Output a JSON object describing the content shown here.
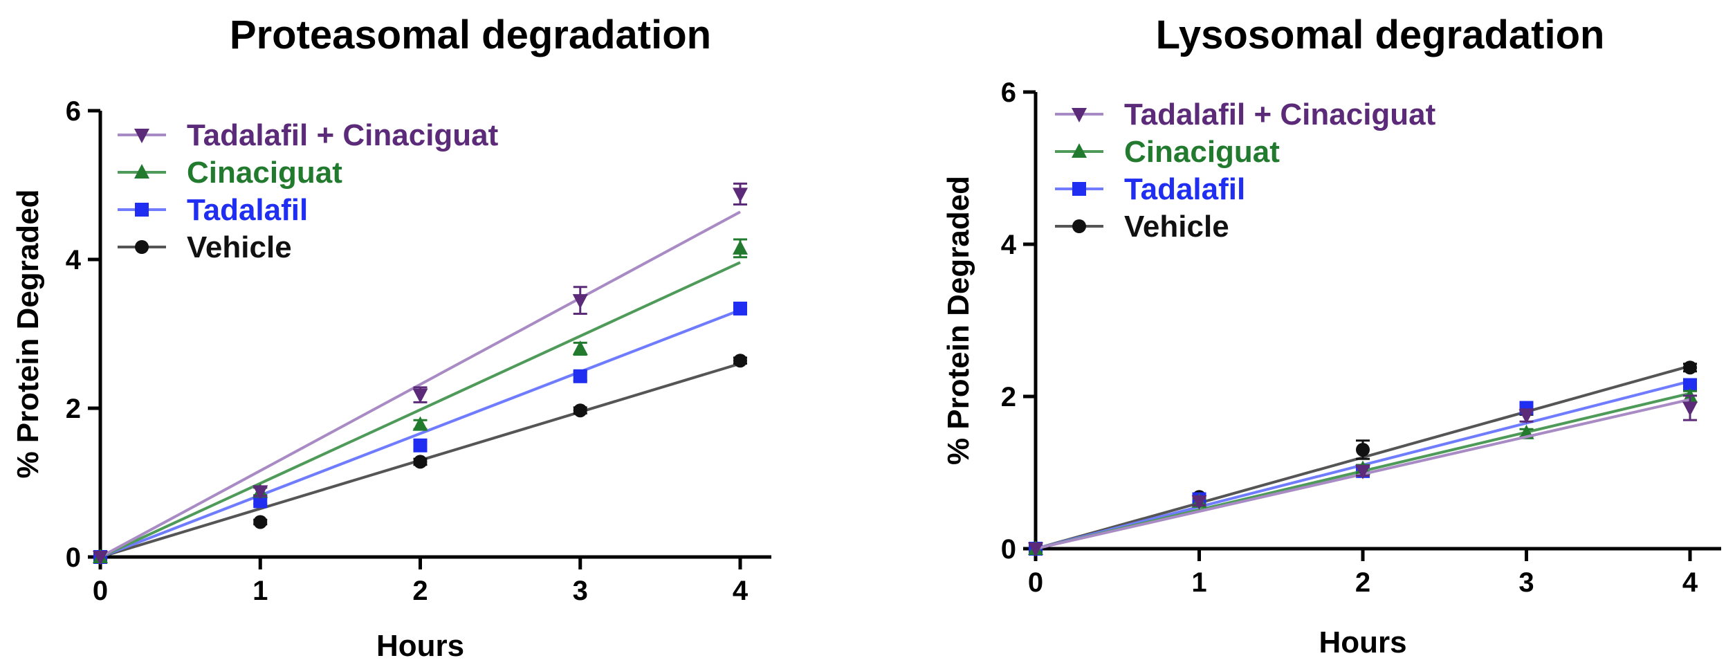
{
  "colors": {
    "axis": "#000000",
    "Tadalafil + Cinaciguat": "#5b2a78",
    "Cinaciguat": "#217a2e",
    "Tadalafil": "#1f2ef0",
    "Vehicle": "#111111",
    "fit_Tadalafil + Cinaciguat": "#a88bc4",
    "fit_Cinaciguat": "#4e9a58",
    "fit_Tadalafil": "#6f7cff",
    "fit_Vehicle": "#555555"
  },
  "chart_data": [
    {
      "type": "line",
      "title": "Proteasomal degradation",
      "xlabel": "Hours",
      "ylabel": "% Protein Degraded",
      "xlim": [
        0,
        4
      ],
      "ylim": [
        0,
        6
      ],
      "xticks": [
        "0",
        "1",
        "2",
        "3",
        "4"
      ],
      "yticks": [
        "0",
        "2",
        "4",
        "6"
      ],
      "x": [
        0,
        1,
        2,
        3,
        4
      ],
      "legend_position": "top-left",
      "series": [
        {
          "name": "Tadalafil + Cinaciguat",
          "marker": "triangle-down",
          "values": [
            0,
            0.88,
            2.18,
            3.45,
            4.88
          ],
          "errors": [
            0,
            0.06,
            0.1,
            0.18,
            0.14
          ],
          "fit_slope": 1.16
        },
        {
          "name": "Cinaciguat",
          "marker": "triangle-up",
          "values": [
            0,
            0.88,
            1.78,
            2.8,
            4.15
          ],
          "errors": [
            0,
            0.05,
            0.06,
            0.08,
            0.12
          ],
          "fit_slope": 0.99
        },
        {
          "name": "Tadalafil",
          "marker": "square",
          "values": [
            0,
            0.75,
            1.5,
            2.43,
            3.34
          ],
          "errors": [
            0,
            0.04,
            0.05,
            0.06,
            0.05
          ],
          "fit_slope": 0.83
        },
        {
          "name": "Vehicle",
          "marker": "circle",
          "values": [
            0,
            0.47,
            1.28,
            1.97,
            2.64
          ],
          "errors": [
            0,
            0.03,
            0.04,
            0.04,
            0.04
          ],
          "fit_slope": 0.65
        }
      ]
    },
    {
      "type": "line",
      "title": "Lysosomal degradation",
      "xlabel": "Hours",
      "ylabel": "% Protein Degraded",
      "xlim": [
        0,
        4
      ],
      "ylim": [
        0,
        6
      ],
      "xticks": [
        "0",
        "1",
        "2",
        "3",
        "4"
      ],
      "yticks": [
        "0",
        "2",
        "4",
        "6"
      ],
      "x": [
        0,
        1,
        2,
        3,
        4
      ],
      "legend_position": "top-left",
      "series": [
        {
          "name": "Tadalafil + Cinaciguat",
          "marker": "triangle-down",
          "values": [
            0,
            0.62,
            1.02,
            1.75,
            1.85
          ],
          "errors": [
            0,
            0.05,
            0.06,
            0.08,
            0.16
          ],
          "fit_slope": 0.49
        },
        {
          "name": "Cinaciguat",
          "marker": "triangle-up",
          "values": [
            0,
            0.62,
            1.05,
            1.52,
            2.0
          ],
          "errors": [
            0,
            0.04,
            0.05,
            0.05,
            0.07
          ],
          "fit_slope": 0.51
        },
        {
          "name": "Tadalafil",
          "marker": "square",
          "values": [
            0,
            0.65,
            1.02,
            1.85,
            2.15
          ],
          "errors": [
            0,
            0.04,
            0.05,
            0.06,
            0.06
          ],
          "fit_slope": 0.55
        },
        {
          "name": "Vehicle",
          "marker": "circle",
          "values": [
            0,
            0.68,
            1.3,
            1.82,
            2.38
          ],
          "errors": [
            0,
            0.04,
            0.12,
            0.06,
            0.05
          ],
          "fit_slope": 0.6
        }
      ]
    }
  ]
}
